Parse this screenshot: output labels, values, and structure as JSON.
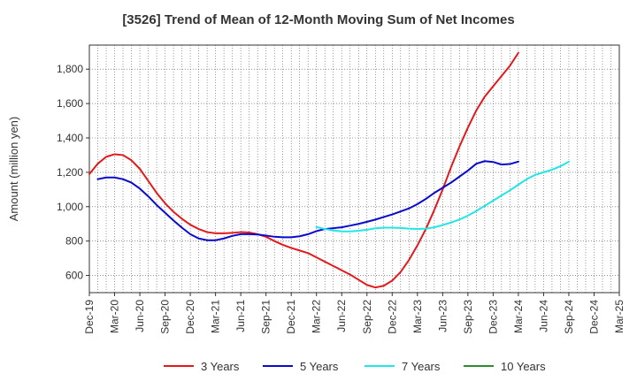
{
  "chart_data": {
    "type": "line",
    "title": "[3526]  Trend of Mean of 12-Month Moving Sum of Net Incomes",
    "xlabel": "",
    "ylabel": "Amount (million yen)",
    "ylim": [
      500,
      1940
    ],
    "yticks": [
      600,
      800,
      1000,
      1200,
      1400,
      1600,
      1800
    ],
    "ytick_labels": [
      "600",
      "800",
      "1,000",
      "1,200",
      "1,400",
      "1,600",
      "1,800"
    ],
    "categories": [
      "Dec-19",
      "Mar-20",
      "Jun-20",
      "Sep-20",
      "Dec-20",
      "Mar-21",
      "Jun-21",
      "Sep-21",
      "Dec-21",
      "Mar-22",
      "Jun-22",
      "Sep-22",
      "Dec-22",
      "Mar-23",
      "Jun-23",
      "Sep-23",
      "Dec-23",
      "Mar-24",
      "Jun-24",
      "Sep-24",
      "Dec-24",
      "Mar-25"
    ],
    "grid": true,
    "legend_position": "bottom",
    "series": [
      {
        "name": "3 Years",
        "color": "#e31a1c",
        "points": [
          [
            0,
            1190
          ],
          [
            1,
            1250
          ],
          [
            2,
            1290
          ],
          [
            3,
            1305
          ],
          [
            4,
            1300
          ],
          [
            5,
            1270
          ],
          [
            6,
            1220
          ],
          [
            7,
            1150
          ],
          [
            8,
            1080
          ],
          [
            9,
            1020
          ],
          [
            10,
            970
          ],
          [
            11,
            930
          ],
          [
            12,
            895
          ],
          [
            13,
            870
          ],
          [
            14,
            852
          ],
          [
            15,
            845
          ],
          [
            16,
            845
          ],
          [
            17,
            848
          ],
          [
            18,
            852
          ],
          [
            19,
            850
          ],
          [
            20,
            840
          ],
          [
            21,
            825
          ],
          [
            22,
            800
          ],
          [
            23,
            778
          ],
          [
            24,
            760
          ],
          [
            25,
            745
          ],
          [
            26,
            730
          ],
          [
            27,
            705
          ],
          [
            28,
            680
          ],
          [
            29,
            655
          ],
          [
            30,
            630
          ],
          [
            31,
            605
          ],
          [
            32,
            575
          ],
          [
            33,
            545
          ],
          [
            34,
            530
          ],
          [
            35,
            540
          ],
          [
            36,
            570
          ],
          [
            37,
            620
          ],
          [
            38,
            690
          ],
          [
            39,
            775
          ],
          [
            40,
            870
          ],
          [
            41,
            980
          ],
          [
            42,
            1100
          ],
          [
            43,
            1230
          ],
          [
            44,
            1350
          ],
          [
            45,
            1460
          ],
          [
            46,
            1560
          ],
          [
            47,
            1640
          ],
          [
            48,
            1700
          ],
          [
            49,
            1760
          ],
          [
            50,
            1820
          ],
          [
            51,
            1895
          ]
        ]
      },
      {
        "name": "5 Years",
        "color": "#0a0acd",
        "points": [
          [
            1,
            1160
          ],
          [
            2,
            1170
          ],
          [
            3,
            1170
          ],
          [
            4,
            1160
          ],
          [
            5,
            1140
          ],
          [
            6,
            1105
          ],
          [
            7,
            1060
          ],
          [
            8,
            1010
          ],
          [
            9,
            965
          ],
          [
            10,
            920
          ],
          [
            11,
            878
          ],
          [
            12,
            840
          ],
          [
            13,
            815
          ],
          [
            14,
            805
          ],
          [
            15,
            805
          ],
          [
            16,
            815
          ],
          [
            17,
            830
          ],
          [
            18,
            840
          ],
          [
            19,
            840
          ],
          [
            20,
            838
          ],
          [
            21,
            832
          ],
          [
            22,
            825
          ],
          [
            23,
            822
          ],
          [
            24,
            822
          ],
          [
            25,
            828
          ],
          [
            26,
            840
          ],
          [
            27,
            858
          ],
          [
            28,
            870
          ],
          [
            29,
            875
          ],
          [
            30,
            880
          ],
          [
            31,
            890
          ],
          [
            32,
            900
          ],
          [
            33,
            912
          ],
          [
            34,
            925
          ],
          [
            35,
            940
          ],
          [
            36,
            955
          ],
          [
            37,
            972
          ],
          [
            38,
            990
          ],
          [
            39,
            1015
          ],
          [
            40,
            1045
          ],
          [
            41,
            1080
          ],
          [
            42,
            1110
          ],
          [
            43,
            1140
          ],
          [
            44,
            1175
          ],
          [
            45,
            1210
          ],
          [
            46,
            1250
          ],
          [
            47,
            1265
          ],
          [
            48,
            1260
          ],
          [
            49,
            1245
          ],
          [
            50,
            1248
          ],
          [
            51,
            1262
          ]
        ]
      },
      {
        "name": "7 Years",
        "color": "#22e6e6",
        "points": [
          [
            27,
            882
          ],
          [
            28,
            870
          ],
          [
            29,
            862
          ],
          [
            30,
            856
          ],
          [
            31,
            856
          ],
          [
            32,
            860
          ],
          [
            33,
            866
          ],
          [
            34,
            874
          ],
          [
            35,
            878
          ],
          [
            36,
            878
          ],
          [
            37,
            876
          ],
          [
            38,
            872
          ],
          [
            39,
            870
          ],
          [
            40,
            872
          ],
          [
            41,
            880
          ],
          [
            42,
            893
          ],
          [
            43,
            908
          ],
          [
            44,
            925
          ],
          [
            45,
            948
          ],
          [
            46,
            975
          ],
          [
            47,
            1005
          ],
          [
            48,
            1035
          ],
          [
            49,
            1065
          ],
          [
            50,
            1095
          ],
          [
            51,
            1128
          ],
          [
            52,
            1160
          ],
          [
            53,
            1185
          ],
          [
            54,
            1200
          ],
          [
            55,
            1215
          ],
          [
            56,
            1235
          ],
          [
            57,
            1262
          ]
        ]
      },
      {
        "name": "10 Years",
        "color": "#2e8b2e",
        "points": []
      }
    ]
  }
}
